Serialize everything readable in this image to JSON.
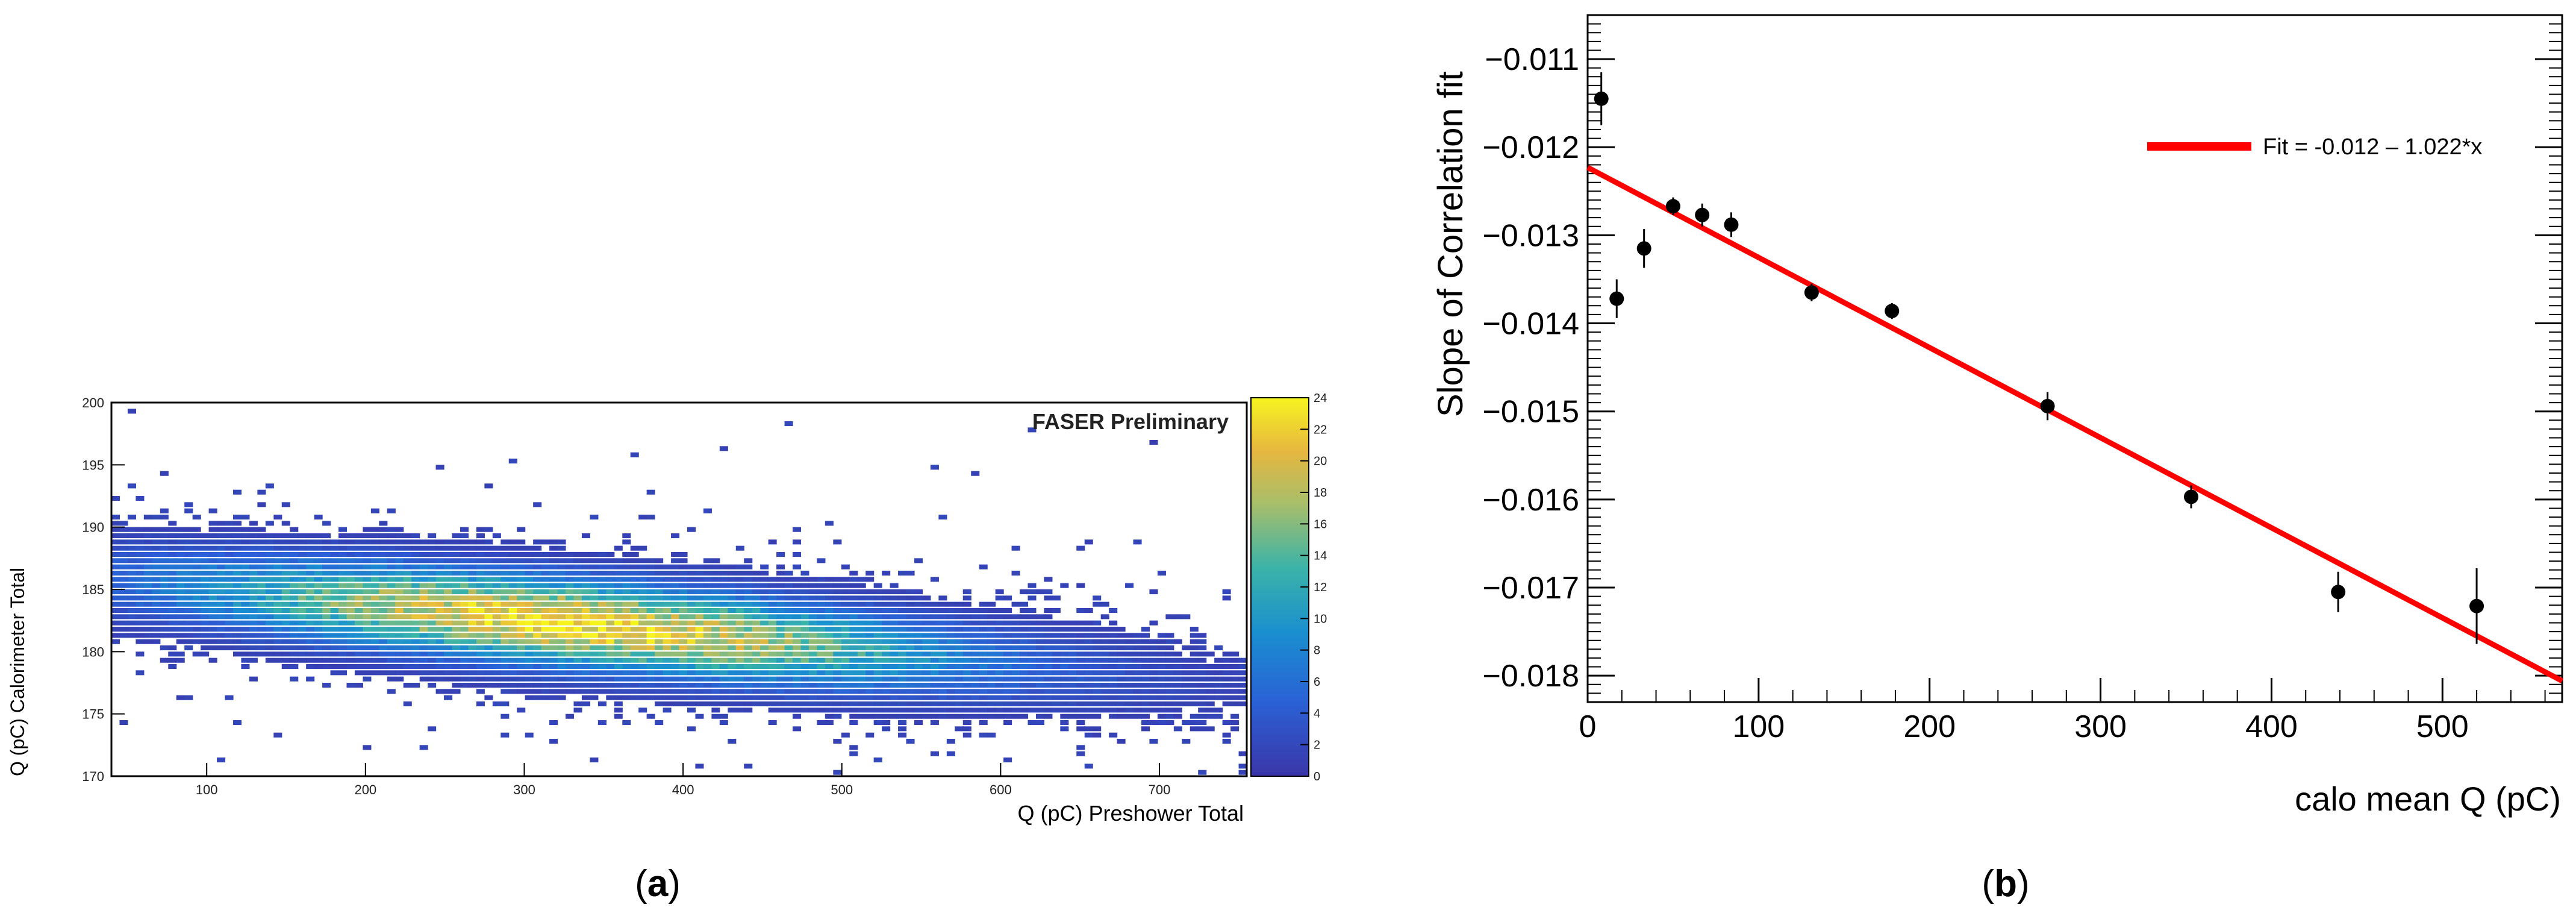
{
  "panels": {
    "a": {
      "caption_open": "(",
      "caption_letter": "a",
      "caption_close": ")"
    },
    "b": {
      "caption_open": "(",
      "caption_letter": "b",
      "caption_close": ")"
    }
  },
  "chart_data": [
    {
      "id": "a",
      "type": "heatmap",
      "title": "",
      "annotation": "FASER Preliminary",
      "xlabel": "Q (pC) Preshower Total",
      "ylabel": "Q (pC) Calorimeter Total",
      "xlim": [
        40,
        755
      ],
      "ylim": [
        170,
        200
      ],
      "xticks": [
        100,
        200,
        300,
        400,
        500,
        600,
        700
      ],
      "yticks": [
        170,
        175,
        180,
        185,
        190,
        195,
        200
      ],
      "colorbar": {
        "range": [
          0,
          24
        ],
        "ticks": [
          0,
          2,
          4,
          6,
          8,
          10,
          12,
          14,
          16,
          18,
          20,
          22,
          24
        ]
      },
      "distribution": {
        "description": "dense band of counts falling with x",
        "center_line": {
          "slope_per_pC": -0.012,
          "y_at_x_0": 186.2
        },
        "peak_x": 330,
        "peak_counts": 22,
        "core_sigma_y": 2.3
      }
    },
    {
      "id": "b",
      "type": "scatter",
      "title": "",
      "xlabel": "calo mean Q (pC)",
      "ylabel": "Slope of Correlation fit",
      "xlim": [
        0,
        570
      ],
      "ylim": [
        -0.0183,
        -0.0105
      ],
      "xticks": [
        0,
        100,
        200,
        300,
        400,
        500
      ],
      "yticks": [
        -0.011,
        -0.012,
        -0.013,
        -0.014,
        -0.015,
        -0.016,
        -0.017,
        -0.018
      ],
      "ytick_labels": [
        "−0.011",
        "−0.012",
        "−0.013",
        "−0.014",
        "−0.015",
        "−0.016",
        "−0.017",
        "−0.018"
      ],
      "series": [
        {
          "name": "data",
          "x": [
            8,
            17,
            33,
            50,
            67,
            84,
            131,
            178,
            269,
            353,
            439,
            520
          ],
          "y": [
            -0.01145,
            -0.01372,
            -0.01315,
            -0.01267,
            -0.01277,
            -0.01288,
            -0.01365,
            -0.01386,
            -0.01494,
            -0.01597,
            -0.01705,
            -0.01721
          ],
          "yerr": [
            0.0003,
            0.00022,
            0.00022,
            0.0001,
            0.00013,
            0.00014,
            0.0001,
            9e-05,
            0.00016,
            0.00013,
            0.00023,
            0.00043
          ]
        }
      ],
      "fit": {
        "label": "Fit = -0.012 – 1.022*x",
        "color": "#ff0000",
        "x_range": [
          0,
          570
        ],
        "y_endpoints": [
          -0.01223,
          -0.01806
        ]
      }
    }
  ]
}
